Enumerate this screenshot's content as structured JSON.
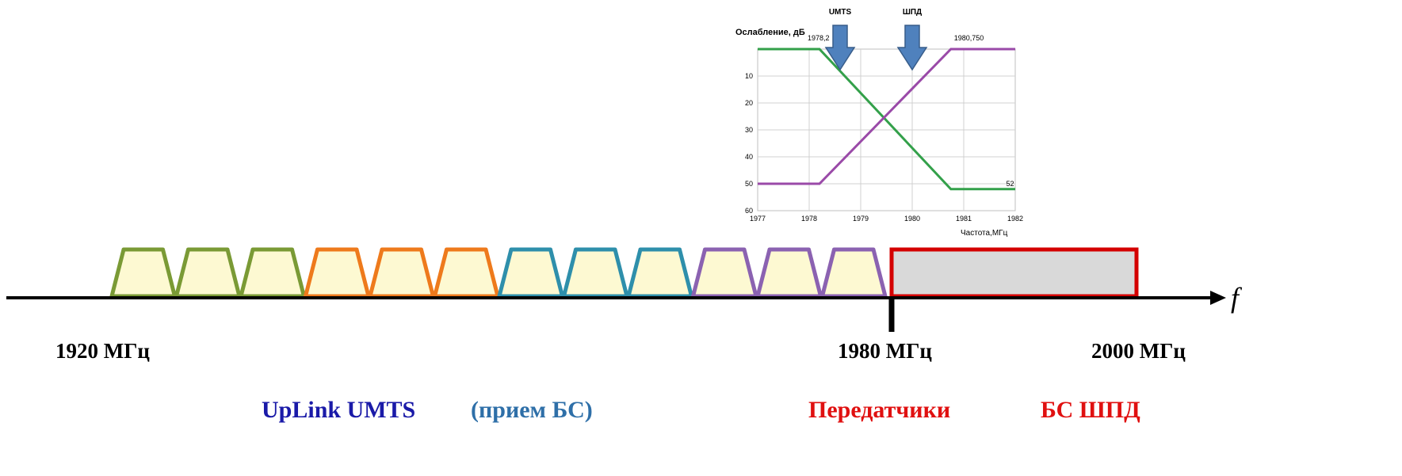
{
  "colors": {
    "green": "#7a9a35",
    "orange": "#ee7a1c",
    "teal": "#2e8fab",
    "purple": "#8b62b1",
    "channel_fill": "#fdf9d2",
    "broadband_fill": "#d9d9d9",
    "broadband_border": "#d40000",
    "axis": "#000000",
    "uplink_text": "#1a1aa8",
    "rx_text": "#2e6fa8",
    "tx_text": "#e01010",
    "arrow_fill": "#4f81bd",
    "curve_green": "#33a04a",
    "curve_purple": "#9a4aa8"
  },
  "axis": {
    "symbol": "f",
    "labels": [
      "1920 МГц",
      "1980 МГц",
      "2000 МГц"
    ]
  },
  "band_labels": {
    "uplink": "UpLink UMTS",
    "rx": "(прием БС)",
    "tx": "Передатчики",
    "bs": "БС ШПД"
  },
  "channels": {
    "groups": [
      {
        "color": "green",
        "count": 3
      },
      {
        "color": "orange",
        "count": 3
      },
      {
        "color": "teal",
        "count": 3
      },
      {
        "color": "purple",
        "count": 3
      }
    ]
  },
  "chart_data": {
    "type": "line",
    "ylabel": "Ослабление, дБ",
    "xlabel": "Частота,МГц",
    "xlim": [
      1977,
      1982
    ],
    "ylim": [
      0,
      60
    ],
    "y_inverted": true,
    "grid": true,
    "x_ticks": [
      "1977",
      "1978",
      "1979",
      "1980",
      "1981",
      "1982"
    ],
    "y_ticks": [
      "10",
      "20",
      "30",
      "40",
      "50",
      "60"
    ],
    "arrows": [
      {
        "label": "UMTS",
        "x": 1978.6
      },
      {
        "label": "ШПД",
        "x": 1980.0
      }
    ],
    "annotations": [
      {
        "text": "1978,2",
        "x": 1978.2
      },
      {
        "text": "1980,750",
        "x": 1980.75
      },
      {
        "text": "52",
        "x": 1981.9
      }
    ],
    "series": [
      {
        "color": "curve_green",
        "x": [
          1977,
          1978.2,
          1980.75,
          1982
        ],
        "y": [
          0,
          0,
          52,
          52
        ]
      },
      {
        "color": "curve_purple",
        "x": [
          1977,
          1978.2,
          1980.75,
          1982
        ],
        "y": [
          50,
          50,
          0,
          0
        ]
      }
    ]
  }
}
